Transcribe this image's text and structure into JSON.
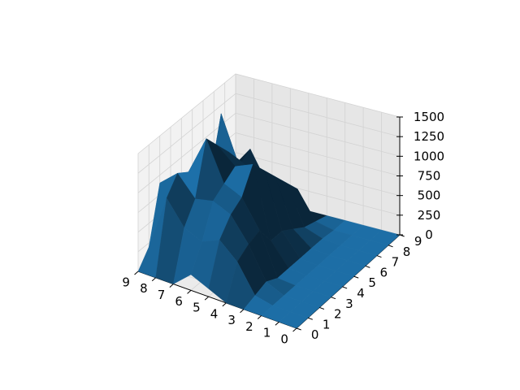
{
  "chart_data": {
    "type": "surface",
    "title": "",
    "xlabel": "",
    "ylabel": "",
    "zlabel": "",
    "x_ticks": [
      "0",
      "1",
      "2",
      "3",
      "4",
      "5",
      "6",
      "7",
      "8",
      "9"
    ],
    "y_ticks": [
      "0",
      "1",
      "2",
      "3",
      "4",
      "5",
      "6",
      "7",
      "8",
      "9"
    ],
    "z_ticks": [
      "0",
      "250",
      "500",
      "750",
      "1000",
      "1250",
      "1500"
    ],
    "xlim": [
      0,
      9
    ],
    "ylim": [
      0,
      9
    ],
    "zlim": [
      0,
      1500
    ],
    "grid": true,
    "colors": {
      "surface": "#1f77b4",
      "pane_left": "#f2f2f2",
      "pane_back": "#e6e6e6",
      "pane_floor": "#ebebeb",
      "grid": "#d3d3d3"
    },
    "z_values": [
      [
        0,
        0,
        0,
        0,
        0,
        0,
        0,
        0,
        0,
        0
      ],
      [
        0,
        0,
        0,
        0,
        0,
        0,
        0,
        0,
        0,
        0
      ],
      [
        0,
        0,
        0,
        0,
        0,
        0,
        0,
        0,
        0,
        0
      ],
      [
        0,
        50,
        100,
        20,
        20,
        20,
        20,
        20,
        0,
        0
      ],
      [
        0,
        400,
        500,
        550,
        300,
        300,
        200,
        100,
        50,
        0
      ],
      [
        100,
        600,
        800,
        900,
        1200,
        1000,
        800,
        600,
        400,
        0
      ],
      [
        200,
        500,
        900,
        1000,
        1100,
        1000,
        700,
        500,
        300,
        0
      ],
      [
        0,
        600,
        850,
        1500,
        1300,
        1100,
        800,
        900,
        500,
        0
      ],
      [
        0,
        900,
        1100,
        1000,
        800,
        600,
        1400,
        600,
        200,
        0
      ],
      [
        0,
        200,
        900,
        800,
        200,
        100,
        0,
        0,
        0,
        0
      ]
    ]
  }
}
